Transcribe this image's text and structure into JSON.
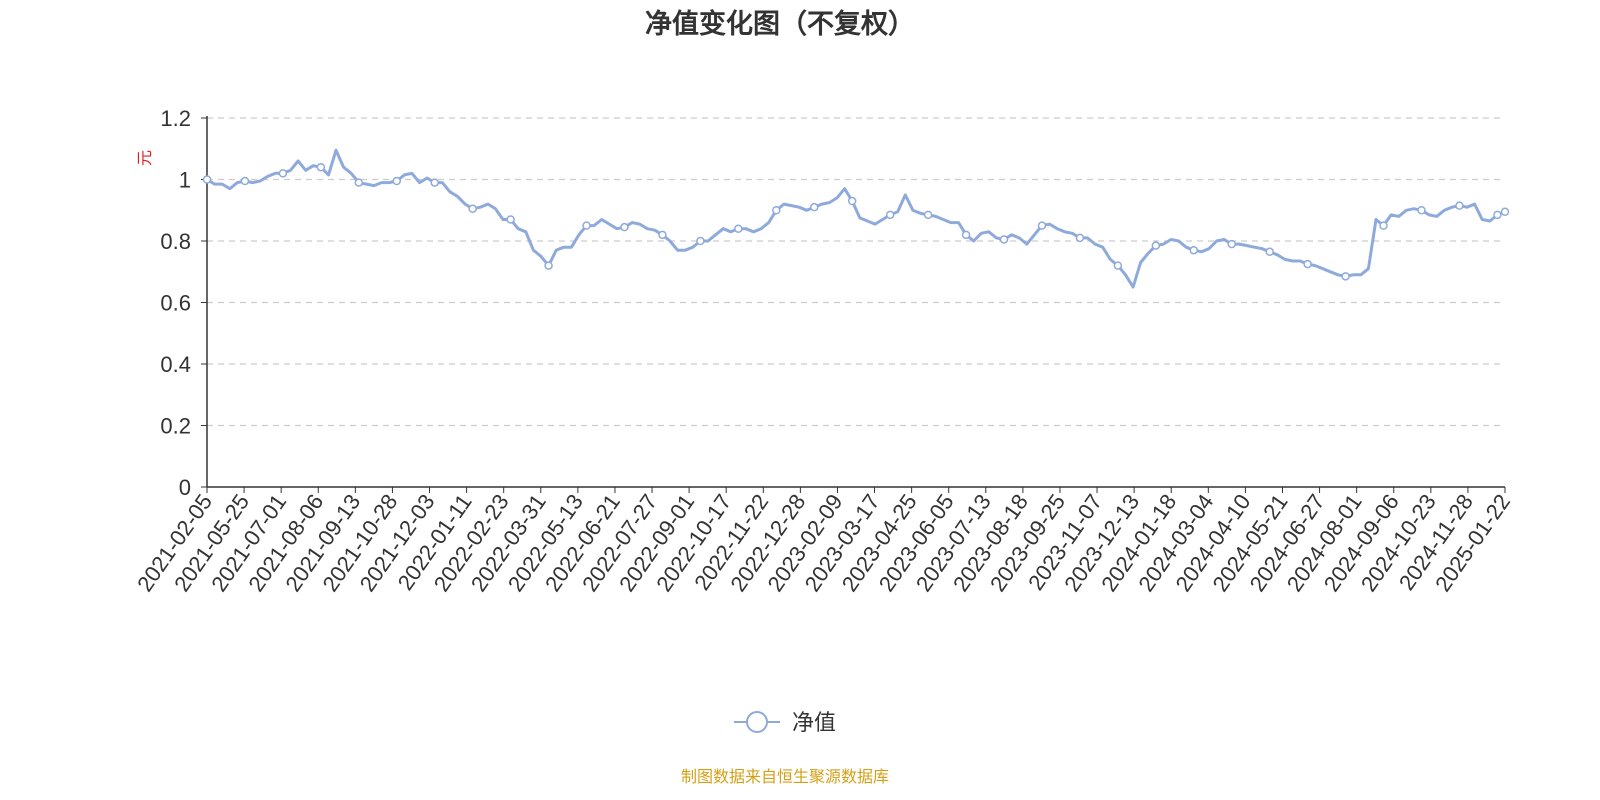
{
  "colors": {
    "series": "#8eaadb",
    "ylabel": "#e02020",
    "source": "#d4a017",
    "grid": "#cccccc",
    "axis": "#333333"
  },
  "footer": {
    "source": "制图数据来自恒生聚源数据库"
  },
  "chart_data": {
    "type": "line",
    "title": "净值变化图（不复权）",
    "xlabel": "",
    "ylabel": "元",
    "ylim": [
      0,
      1.2
    ],
    "yticks": [
      "0",
      "0.2",
      "0.4",
      "0.6",
      "0.8",
      "1",
      "1.2"
    ],
    "grid": true,
    "legend": "bottom-center",
    "x_tick_labels": [
      "2021-02-05",
      "2021-05-25",
      "2021-07-01",
      "2021-08-06",
      "2021-09-13",
      "2021-10-28",
      "2021-12-03",
      "2022-01-11",
      "2022-02-23",
      "2022-03-31",
      "2022-05-13",
      "2022-06-21",
      "2022-07-27",
      "2022-09-01",
      "2022-10-17",
      "2022-11-22",
      "2022-12-28",
      "2023-02-09",
      "2023-03-17",
      "2023-04-25",
      "2023-06-05",
      "2023-07-13",
      "2023-08-18",
      "2023-09-25",
      "2023-11-07",
      "2023-12-13",
      "2024-01-18",
      "2024-03-04",
      "2024-04-10",
      "2024-05-21",
      "2024-06-27",
      "2024-08-01",
      "2024-09-06",
      "2024-10-23",
      "2024-11-28",
      "2025-01-22"
    ],
    "series": [
      {
        "name": "净值",
        "values": [
          1.0,
          0.985,
          0.985,
          0.97,
          0.99,
          0.995,
          0.99,
          0.995,
          1.01,
          1.02,
          1.02,
          1.03,
          1.06,
          1.03,
          1.045,
          1.04,
          1.015,
          1.095,
          1.04,
          1.02,
          0.99,
          0.985,
          0.98,
          0.99,
          0.99,
          0.995,
          1.015,
          1.02,
          0.99,
          1.005,
          0.99,
          0.99,
          0.96,
          0.945,
          0.92,
          0.905,
          0.91,
          0.92,
          0.905,
          0.87,
          0.87,
          0.84,
          0.83,
          0.77,
          0.75,
          0.72,
          0.77,
          0.78,
          0.78,
          0.82,
          0.85,
          0.85,
          0.87,
          0.855,
          0.84,
          0.845,
          0.86,
          0.855,
          0.84,
          0.835,
          0.82,
          0.8,
          0.77,
          0.77,
          0.78,
          0.8,
          0.8,
          0.82,
          0.84,
          0.83,
          0.84,
          0.84,
          0.83,
          0.84,
          0.86,
          0.9,
          0.92,
          0.915,
          0.91,
          0.9,
          0.91,
          0.92,
          0.925,
          0.94,
          0.97,
          0.93,
          0.875,
          0.865,
          0.855,
          0.87,
          0.885,
          0.895,
          0.95,
          0.9,
          0.89,
          0.885,
          0.88,
          0.87,
          0.86,
          0.86,
          0.82,
          0.8,
          0.825,
          0.83,
          0.81,
          0.805,
          0.82,
          0.81,
          0.79,
          0.82,
          0.85,
          0.855,
          0.84,
          0.83,
          0.825,
          0.81,
          0.81,
          0.79,
          0.78,
          0.74,
          0.72,
          0.69,
          0.65,
          0.73,
          0.76,
          0.785,
          0.79,
          0.805,
          0.8,
          0.78,
          0.77,
          0.765,
          0.775,
          0.8,
          0.805,
          0.79,
          0.79,
          0.785,
          0.78,
          0.775,
          0.765,
          0.755,
          0.74,
          0.735,
          0.735,
          0.725,
          0.72,
          0.71,
          0.7,
          0.69,
          0.685,
          0.69,
          0.69,
          0.71,
          0.87,
          0.85,
          0.885,
          0.88,
          0.9,
          0.905,
          0.9,
          0.885,
          0.88,
          0.9,
          0.91,
          0.915,
          0.91,
          0.92,
          0.87,
          0.865,
          0.885,
          0.895
        ]
      }
    ]
  }
}
